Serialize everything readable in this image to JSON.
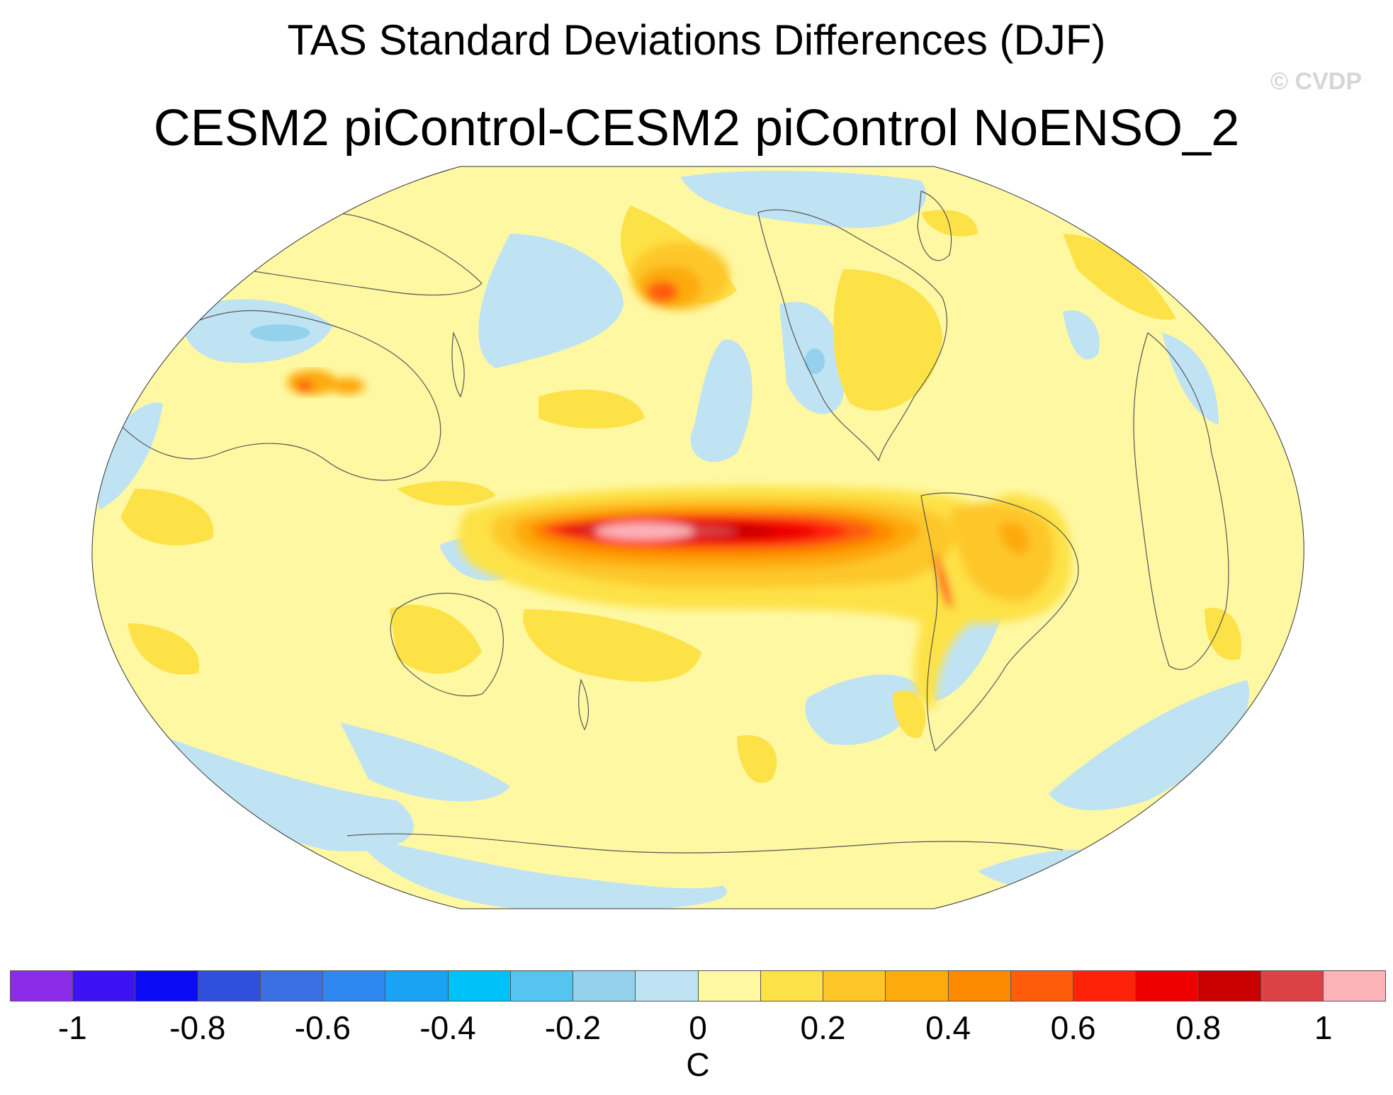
{
  "title": "TAS Standard Deviations Differences (DJF)",
  "subtitle": "CESM2 piControl-CESM2 piControl NoENSO_2",
  "watermark": "© CVDP",
  "colorbar": {
    "unit": "C",
    "colors": [
      "#8a2be8",
      "#3d12f2",
      "#0b0bf5",
      "#2f4fdc",
      "#3b6fe4",
      "#2f88f2",
      "#1aa2f5",
      "#00c1f8",
      "#55c5ef",
      "#93d1ec",
      "#bfe3f3",
      "#fef8a3",
      "#fde247",
      "#fdc72a",
      "#fdaa0f",
      "#fd8a00",
      "#fd5c0a",
      "#fe2308",
      "#ee0000",
      "#c80000",
      "#dc4245",
      "#fcb3b8"
    ],
    "ticks": [
      "-1",
      "-0.8",
      "-0.6",
      "-0.4",
      "-0.2",
      "0",
      "0.2",
      "0.4",
      "0.6",
      "0.8",
      "1"
    ]
  },
  "map": {
    "projection": "Robinson",
    "center_longitude": "180",
    "land_outlines": true
  }
}
